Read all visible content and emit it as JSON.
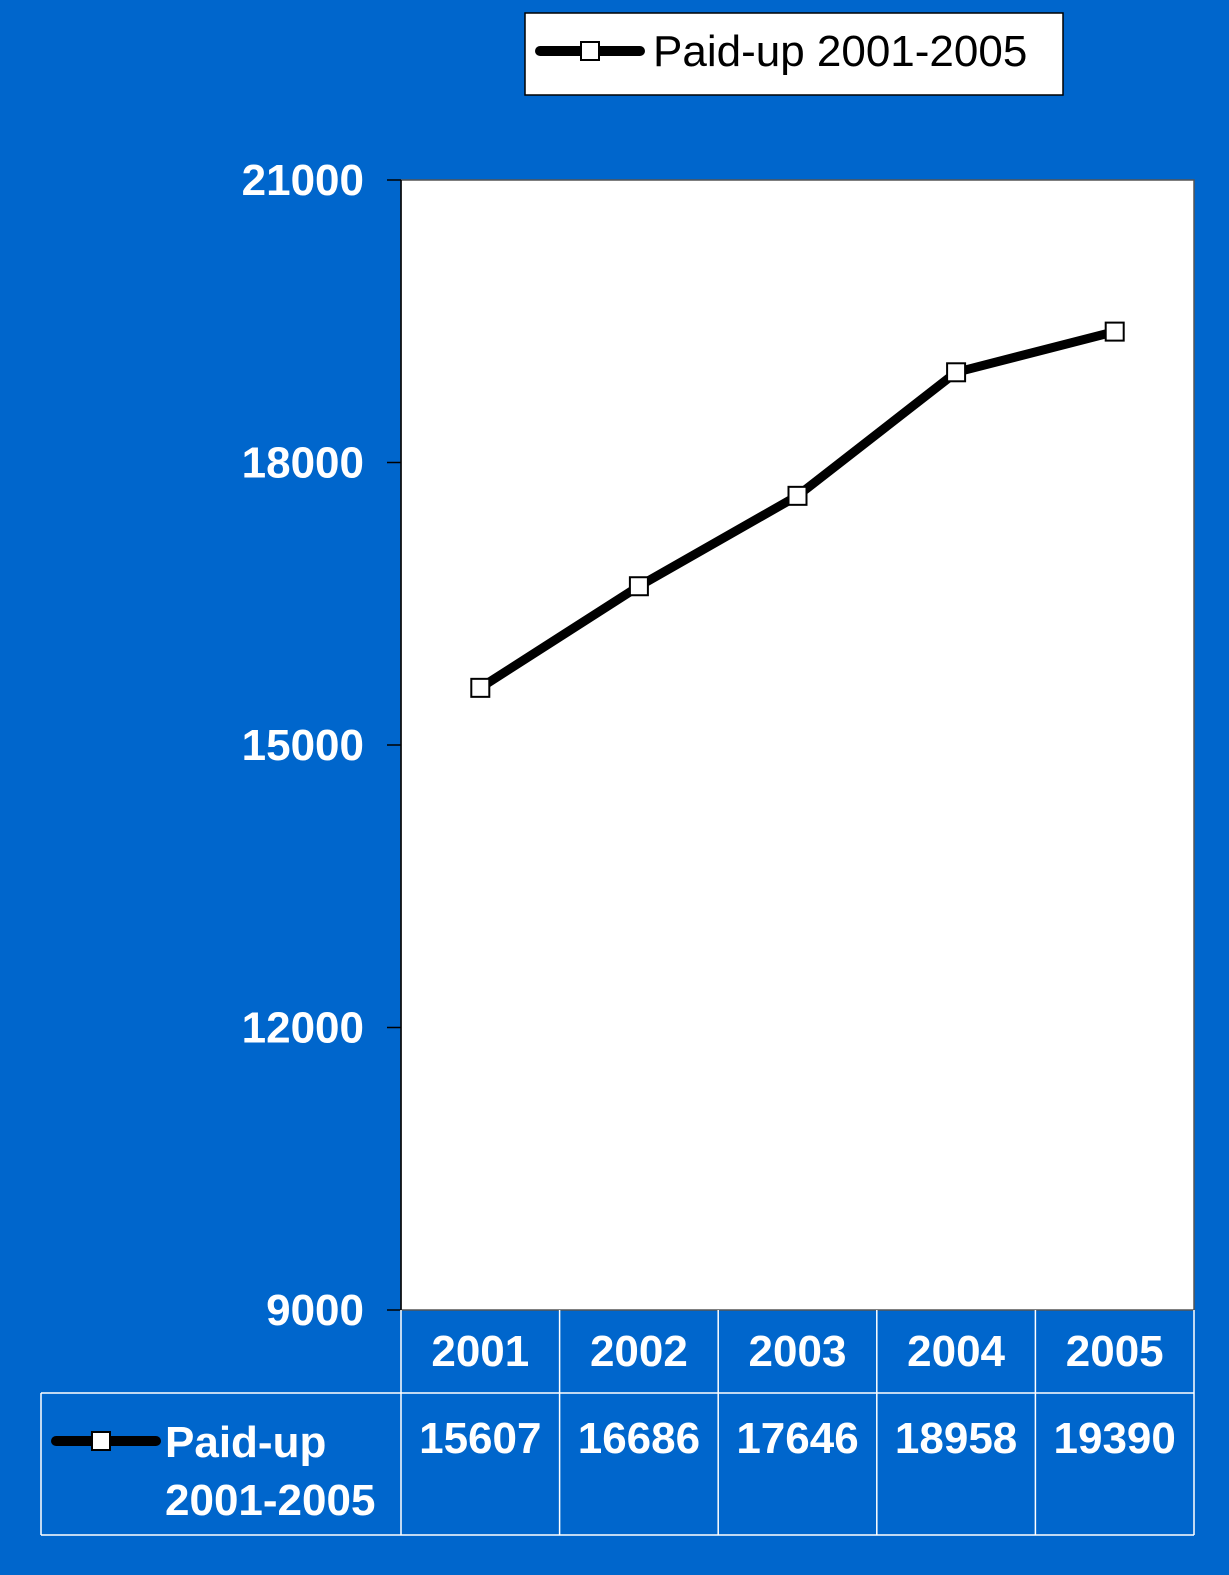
{
  "chart_data": {
    "type": "line",
    "title": "",
    "xlabel": "",
    "ylabel": "",
    "categories": [
      "2001",
      "2002",
      "2003",
      "2004",
      "2005"
    ],
    "series": [
      {
        "name": "Paid-up 2001-2005",
        "values": [
          15607,
          16686,
          17646,
          18958,
          19390
        ]
      }
    ],
    "ylim": [
      9000,
      21000
    ],
    "yticks": [
      9000,
      12000,
      15000,
      18000,
      21000
    ],
    "legend_position": "top",
    "data_table": true,
    "data_table_row_label_lines": [
      "Paid-up",
      "2001-2005"
    ],
    "grid": false
  },
  "colors": {
    "background": "#0066CC",
    "plot_area": "#FFFFFF",
    "line": "#000000",
    "marker_fill": "#FFFFFF"
  }
}
